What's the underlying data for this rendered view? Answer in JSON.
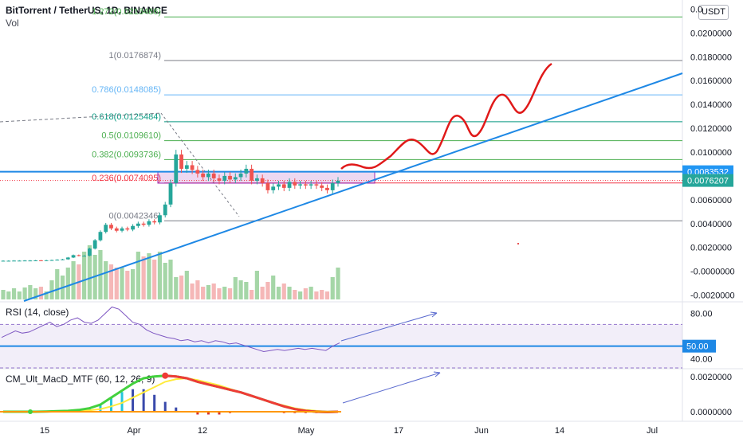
{
  "header": {
    "title": "BitTorrent / TetherUS, 1D, BINANCE",
    "volume_label": "Vol",
    "currency_button": "USDT"
  },
  "chart_data": [
    {
      "type": "candlestick",
      "title": "BitTorrent / TetherUS, 1D, BINANCE",
      "x_tick_labels": [
        "15",
        "Apr",
        "12",
        "May",
        "17",
        "Jun",
        "14",
        "Jul"
      ],
      "y_tick_labels": [
        "0.0200000",
        "0.0180000",
        "0.0160000",
        "0.0140000",
        "0.0120000",
        "0.0100000",
        "0.0060000",
        "0.0040000",
        "0.0020000",
        "-0.0000000",
        "-0.0020000"
      ],
      "y_top_label": "0.0",
      "ylim": [
        -0.0025,
        0.0225
      ],
      "price_tags": [
        {
          "label": "0.0083532",
          "value": 0.0083532,
          "color": "#2196f3"
        },
        {
          "label": "0.0076207",
          "value": 0.0076207,
          "color": "#26a69a"
        }
      ],
      "fibonacci_levels": [
        {
          "label": "1.272(0.0213486)",
          "value": 0.0213486,
          "color": "#4caf50"
        },
        {
          "label": "1(0.0176874)",
          "value": 0.0176874,
          "color": "#787b86"
        },
        {
          "label": "0.786(0.0148085)",
          "value": 0.0148085,
          "color": "#64b5f6"
        },
        {
          "label": "0.618(0.0125484)",
          "value": 0.0125484,
          "color": "#089981"
        },
        {
          "label": "0.5(0.0109610)",
          "value": 0.010961,
          "color": "#4caf50"
        },
        {
          "label": "0.382(0.0093736)",
          "value": 0.0093736,
          "color": "#4caf50"
        },
        {
          "label": "0.236(0.0074095)",
          "value": 0.0074095,
          "color": "#f23645"
        },
        {
          "label": "0(0.0042346)",
          "value": 0.0042346,
          "color": "#787b86"
        }
      ],
      "series": [
        {
          "name": "BitTorrent / TetherUS",
          "close": [
            0.00088,
            0.00088,
            0.00089,
            0.00089,
            0.0009,
            0.0009,
            0.00091,
            0.0009,
            0.00092,
            0.00094,
            0.00097,
            0.001,
            0.00115,
            0.00135,
            0.0013,
            0.0013,
            0.0019,
            0.0026,
            0.0033,
            0.0039,
            0.0036,
            0.0034,
            0.0036,
            0.0035,
            0.0038,
            0.004,
            0.0039,
            0.0042,
            0.0041,
            0.0047,
            0.0056,
            0.0074,
            0.0098,
            0.0086,
            0.0089,
            0.0085,
            0.0082,
            0.0079,
            0.0082,
            0.0078,
            0.0076,
            0.008,
            0.0077,
            0.0079,
            0.0082,
            0.0086,
            0.0076,
            0.0078,
            0.0074,
            0.0068,
            0.0071,
            0.0073,
            0.007,
            0.0075,
            0.0072,
            0.0073,
            0.0072,
            0.0073,
            0.0072,
            0.007,
            0.0068,
            0.0074,
            0.0076
          ]
        }
      ]
    },
    {
      "type": "line",
      "title": "RSI (14, close)",
      "y_tick_labels": [
        "80.00",
        "40.00"
      ],
      "marked_level": "50.00",
      "ylim": [
        30,
        90
      ],
      "series": [
        {
          "name": "RSI (14, close)",
          "values": [
            58,
            61,
            64,
            62,
            63,
            66,
            69,
            72,
            68,
            70,
            74,
            76,
            72,
            71,
            74,
            80,
            86,
            84,
            78,
            72,
            70,
            65,
            62,
            60,
            58,
            57,
            55,
            56,
            54,
            55,
            53,
            55,
            54,
            52,
            53,
            51,
            49,
            47,
            45,
            46,
            47,
            46,
            47,
            48,
            47,
            48,
            47,
            46,
            50,
            53
          ]
        }
      ]
    },
    {
      "type": "line",
      "title": "CM_Ult_MacD_MTF (60, 12, 26, 9)",
      "y_tick_labels": [
        "0.0020000",
        "0.0000000"
      ],
      "ylim": [
        -0.0005,
        0.0024
      ],
      "series": [
        {
          "name": "MACD",
          "values": [
            0.0,
            0.0,
            0.0,
            0.0,
            1e-05,
            3e-05,
            5e-05,
            0.0001,
            0.0002,
            0.0004,
            0.0008,
            0.0012,
            0.0016,
            0.0019,
            0.002,
            0.00205,
            0.002,
            0.0019,
            0.0017,
            0.00155,
            0.0014,
            0.00125,
            0.0011,
            0.0009,
            0.0007,
            0.0005,
            0.0003,
            0.00015,
            5e-05,
            0.0,
            -2e-05,
            0.0
          ]
        },
        {
          "name": "Signal",
          "values": [
            0.0,
            0.0,
            0.0,
            0.0,
            0.0,
            1e-05,
            2e-05,
            4e-05,
            8e-05,
            0.00015,
            0.0003,
            0.0005,
            0.0008,
            0.0011,
            0.0014,
            0.0017,
            0.00185,
            0.0019,
            0.0018,
            0.00165,
            0.0015,
            0.0013,
            0.0011,
            0.0009,
            0.0007,
            0.0005,
            0.00035,
            0.0002,
            0.0001,
            5e-05,
            0.0,
            0.0
          ]
        }
      ]
    }
  ]
}
